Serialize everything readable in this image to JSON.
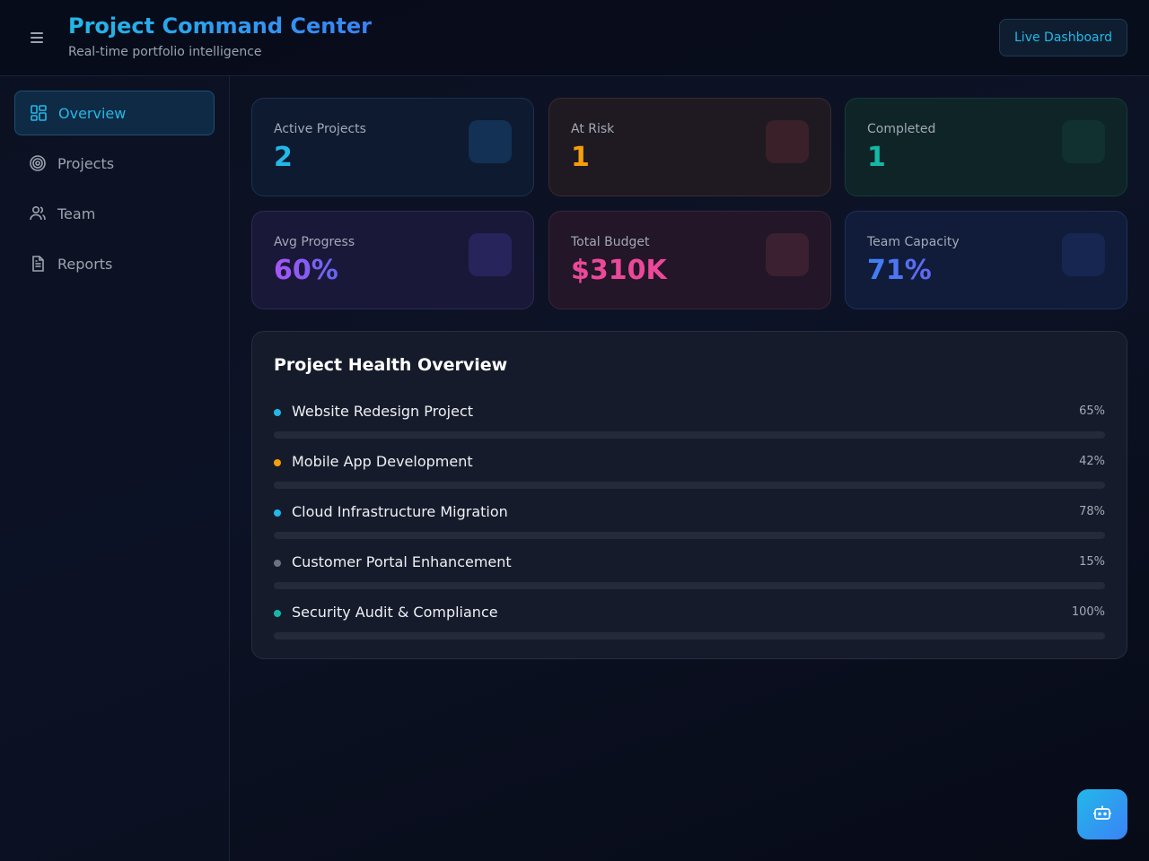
{
  "header": {
    "title": "Project Command Center",
    "subtitle": "Real-time portfolio intelligence",
    "menu_icon": "hamburger-menu-icon",
    "live_button_label": "Live Dashboard"
  },
  "sidebar": {
    "items": [
      {
        "label": "Overview",
        "icon": "grid-icon",
        "active": true
      },
      {
        "label": "Projects",
        "icon": "target-icon",
        "active": false
      },
      {
        "label": "Team",
        "icon": "users-icon",
        "active": false
      },
      {
        "label": "Reports",
        "icon": "document-icon",
        "active": false
      }
    ]
  },
  "stats": [
    {
      "label": "Active Projects",
      "value": "2",
      "color": "#22b8e8"
    },
    {
      "label": "At Risk",
      "value": "1",
      "color": "#f59e0b"
    },
    {
      "label": "Completed",
      "value": "1",
      "color": "#14b8a6"
    },
    {
      "label": "Avg Progress",
      "value": "60%",
      "color": "#a855f7"
    },
    {
      "label": "Total Budget",
      "value": "$310K",
      "color": "#ec4899"
    },
    {
      "label": "Team Capacity",
      "value": "71%",
      "color": "#3b82f6"
    }
  ],
  "health": {
    "title": "Project Health Overview",
    "projects": [
      {
        "name": "Website Redesign Project",
        "percent": "65%",
        "status_color": "#22b8e8"
      },
      {
        "name": "Mobile App Development",
        "percent": "42%",
        "status_color": "#f59e0b"
      },
      {
        "name": "Cloud Infrastructure Migration",
        "percent": "78%",
        "status_color": "#22b8e8"
      },
      {
        "name": "Customer Portal Enhancement",
        "percent": "15%",
        "status_color": "#6b7280"
      },
      {
        "name": "Security Audit & Compliance",
        "percent": "100%",
        "status_color": "#14b8a6"
      }
    ]
  },
  "assistant": {
    "icon": "bot-icon"
  }
}
